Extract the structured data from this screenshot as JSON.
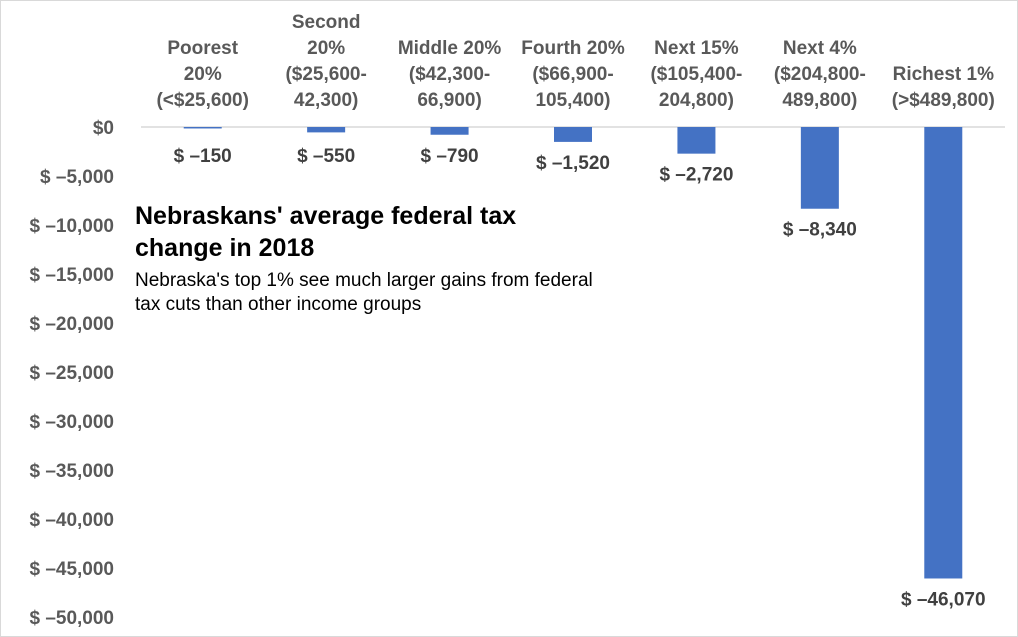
{
  "chart_data": {
    "type": "bar",
    "title_lines": [
      "Nebraskans' average federal tax",
      "change in 2018"
    ],
    "subtitle_lines": [
      "Nebraska's top 1% see much larger gains from federal",
      "tax cuts than other income groups"
    ],
    "categories": [
      [
        "Poorest",
        "20%",
        "(<$25,600)"
      ],
      [
        "Second",
        "20%",
        "($25,600-",
        "42,300)"
      ],
      [
        "Middle 20%",
        "($42,300-",
        "66,900)"
      ],
      [
        "Fourth 20%",
        "($66,900-",
        "105,400)"
      ],
      [
        "Next 15%",
        "($105,400-",
        "204,800)"
      ],
      [
        "Next 4%",
        "($204,800-",
        "489,800)"
      ],
      [
        "Richest 1%",
        "(>$489,800)"
      ]
    ],
    "values": [
      -150,
      -550,
      -790,
      -1520,
      -2720,
      -8340,
      -46070
    ],
    "data_labels": [
      "$ –150",
      "$ –550",
      "$ –790",
      "$ –1,520",
      "$ –2,720",
      "$ –8,340",
      "$ –46,070"
    ],
    "y_ticks": [
      0,
      -5000,
      -10000,
      -15000,
      -20000,
      -25000,
      -30000,
      -35000,
      -40000,
      -45000,
      -50000
    ],
    "y_tick_labels": [
      "$0",
      "$ –5,000",
      "$ –10,000",
      "$ –15,000",
      "$ –20,000",
      "$ –25,000",
      "$ –30,000",
      "$ –35,000",
      "$ –40,000",
      "$ –45,000",
      "$ –50,000"
    ],
    "ylim": [
      -50000,
      0
    ],
    "xlabel": "",
    "ylabel": "",
    "grid": false,
    "bar_color": "#4472c4",
    "axis_color": "#d9d9d9"
  }
}
